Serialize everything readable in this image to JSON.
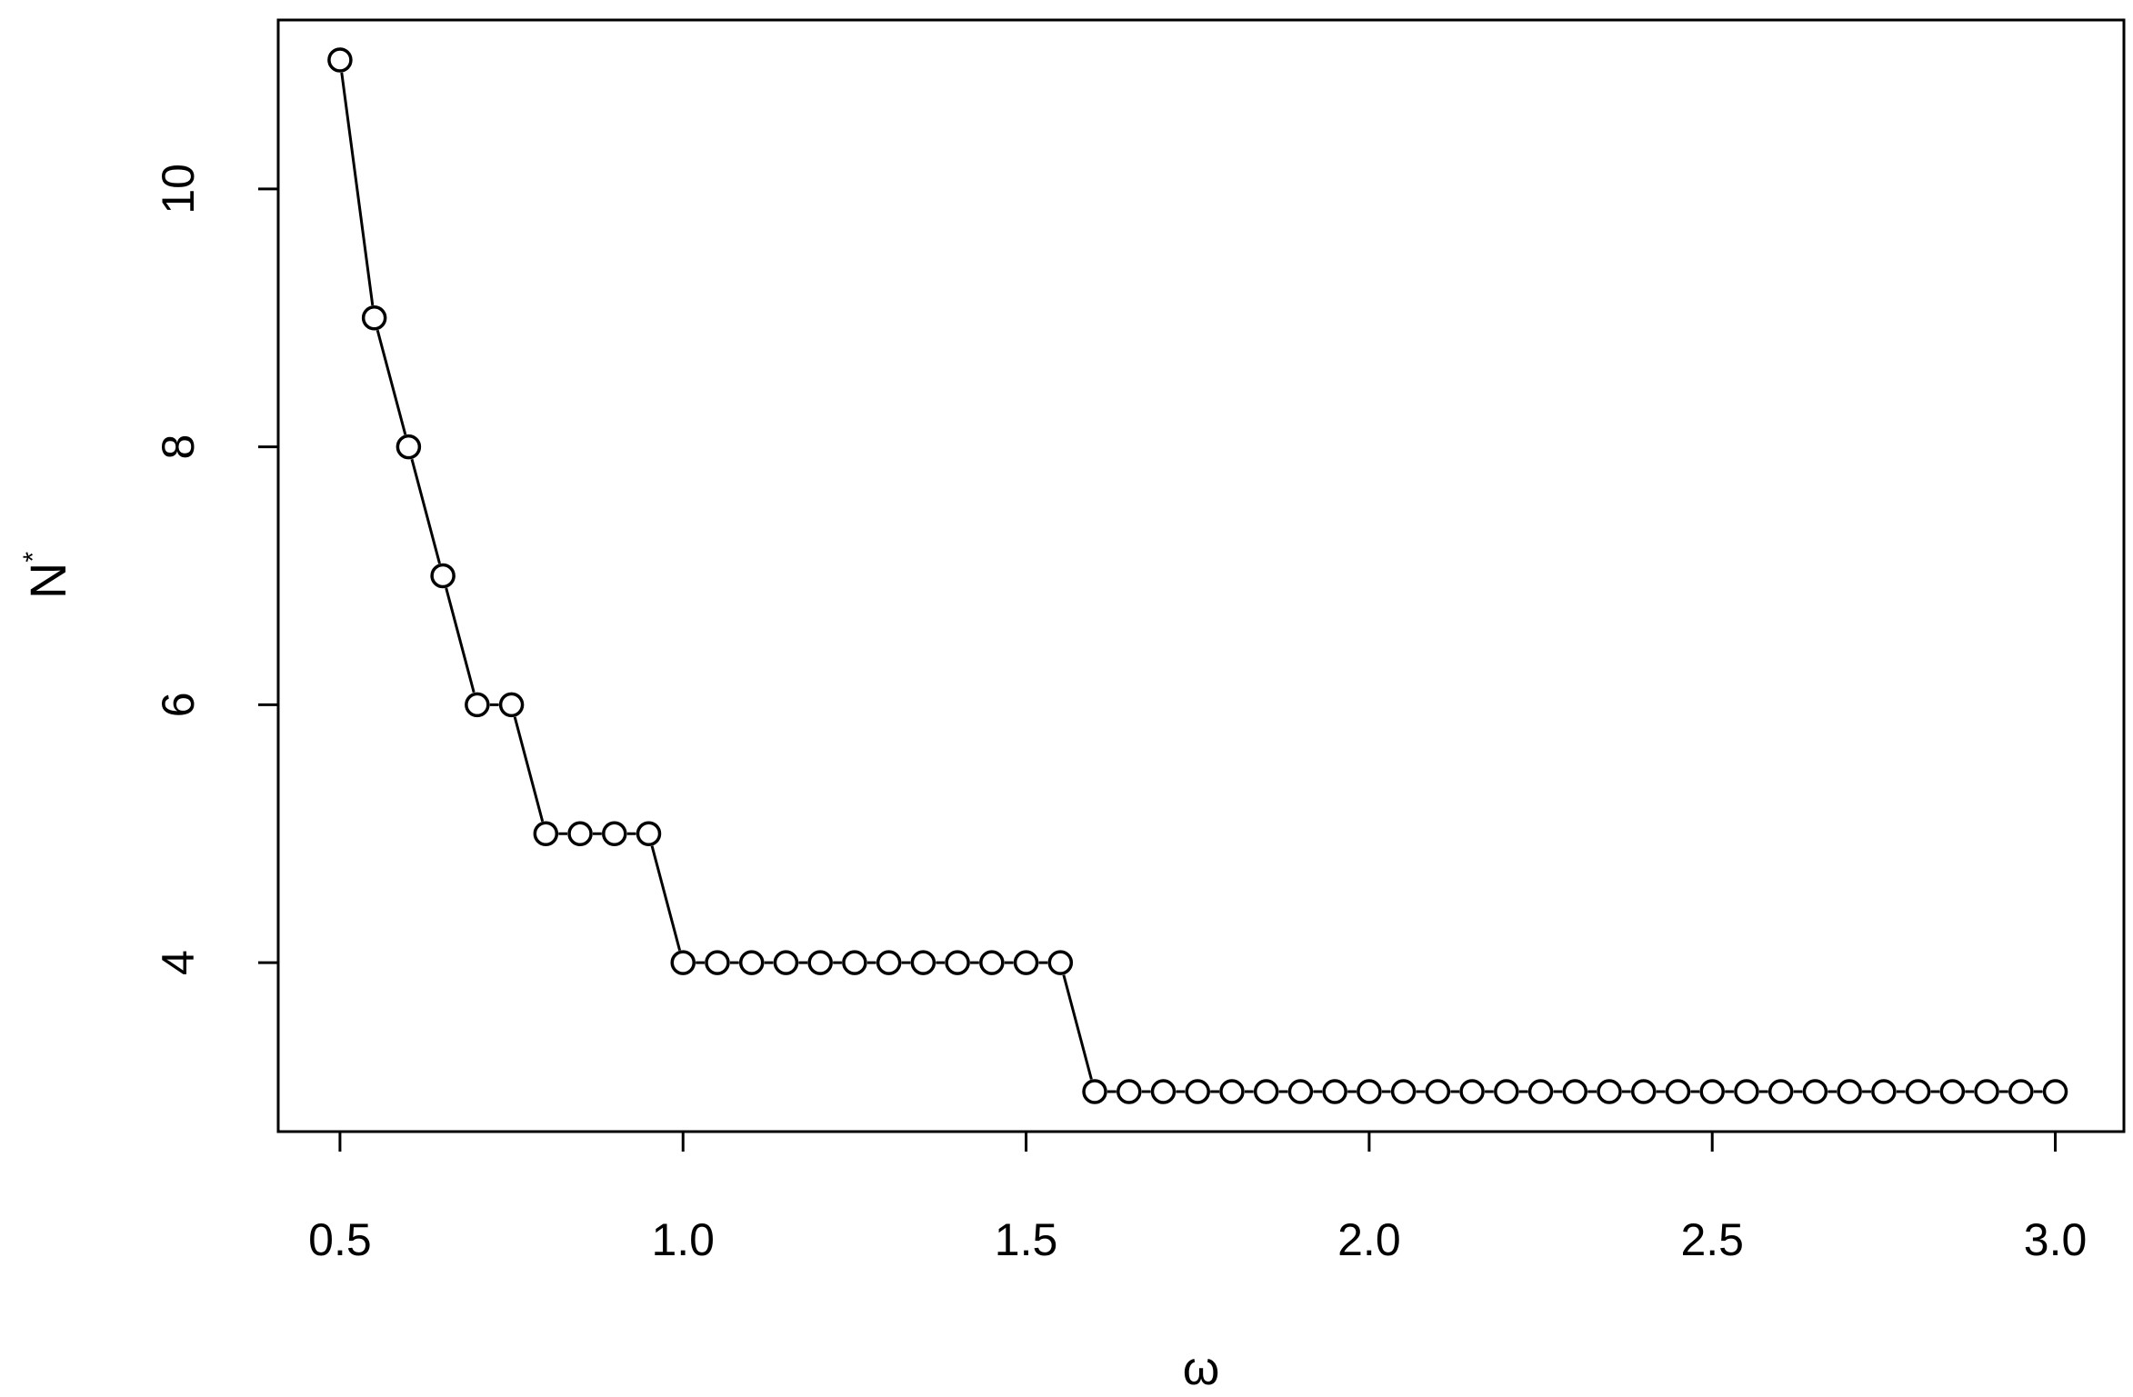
{
  "chart_data": {
    "type": "line",
    "markers": "open-circle",
    "line_color": "#000000",
    "xlabel": "ω",
    "ylabel": "N",
    "ylabel_superscript": "*",
    "xlim": [
      0.41,
      3.1
    ],
    "ylim": [
      2.69,
      11.31
    ],
    "xticks": [
      0.5,
      1.0,
      1.5,
      2.0,
      2.5,
      3.0
    ],
    "xtick_labels": [
      "0.5",
      "1.0",
      "1.5",
      "2.0",
      "2.5",
      "3.0"
    ],
    "yticks": [
      4,
      6,
      8,
      10
    ],
    "ytick_labels": [
      "4",
      "6",
      "8",
      "10"
    ],
    "grid": false,
    "x": [
      0.5,
      0.55,
      0.6,
      0.65,
      0.7,
      0.75,
      0.8,
      0.85,
      0.9,
      0.95,
      1.0,
      1.05,
      1.1,
      1.15,
      1.2,
      1.25,
      1.3,
      1.35,
      1.4,
      1.45,
      1.5,
      1.55,
      1.6,
      1.65,
      1.7,
      1.75,
      1.8,
      1.85,
      1.9,
      1.95,
      2.0,
      2.05,
      2.1,
      2.15,
      2.2,
      2.25,
      2.3,
      2.35,
      2.4,
      2.45,
      2.5,
      2.55,
      2.6,
      2.65,
      2.7,
      2.75,
      2.8,
      2.85,
      2.9,
      2.95,
      3.0
    ],
    "y": [
      11,
      9,
      8,
      7,
      6,
      6,
      5,
      5,
      5,
      5,
      4,
      4,
      4,
      4,
      4,
      4,
      4,
      4,
      4,
      4,
      4,
      4,
      3,
      3,
      3,
      3,
      3,
      3,
      3,
      3,
      3,
      3,
      3,
      3,
      3,
      3,
      3,
      3,
      3,
      3,
      3,
      3,
      3,
      3,
      3,
      3,
      3,
      3,
      3,
      3,
      3
    ]
  }
}
